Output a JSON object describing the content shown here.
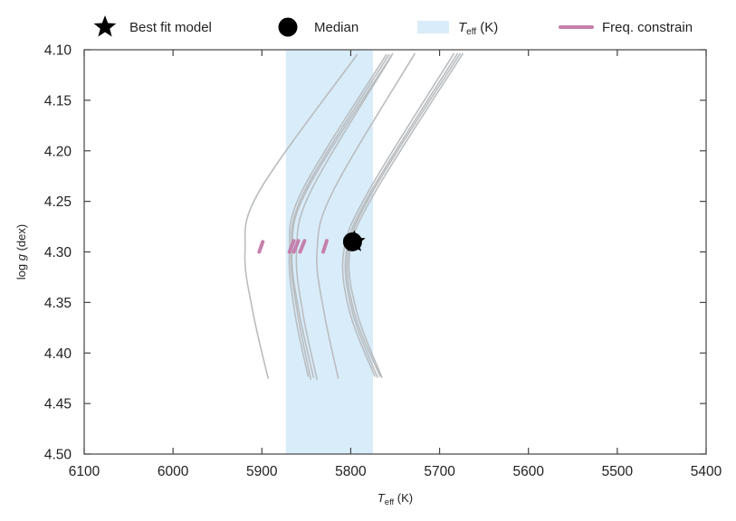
{
  "chart_data": {
    "type": "line",
    "x_axis": {
      "range": [
        6100,
        5400
      ],
      "reversed": true,
      "ticks": [
        6100,
        6000,
        5900,
        5800,
        5700,
        5600,
        5500,
        5400
      ],
      "tick_labels": [
        "6100",
        "6000",
        "5900",
        "5800",
        "5700",
        "5600",
        "5500",
        "5400"
      ],
      "label_main": "T",
      "label_sub": "eff",
      "label_unit": " (K)"
    },
    "y_axis": {
      "range": [
        4.1,
        4.5
      ],
      "reversed": true,
      "ticks": [
        4.1,
        4.15,
        4.2,
        4.25,
        4.3,
        4.35,
        4.4,
        4.45,
        4.5
      ],
      "tick_labels": [
        "4.10",
        "4.15",
        "4.20",
        "4.25",
        "4.30",
        "4.35",
        "4.40",
        "4.45",
        "4.50"
      ],
      "label_pre": "log ",
      "label_italic": "g",
      "label_post": " (dex)"
    },
    "teff_band": {
      "x_min": 5775,
      "x_max": 5873,
      "color": "#d9ecf9"
    },
    "tracks": [
      {
        "x": [
          5793,
          5903,
          5919,
          5910,
          5893
        ],
        "y": [
          4.105,
          4.24,
          4.3,
          4.36,
          4.425
        ]
      },
      {
        "x": [
          5760,
          5855,
          5869,
          5863,
          5848
        ],
        "y": [
          4.105,
          4.24,
          4.3,
          4.36,
          4.423
        ]
      },
      {
        "x": [
          5753,
          5850,
          5866,
          5858,
          5842
        ],
        "y": [
          4.104,
          4.24,
          4.3,
          4.36,
          4.424
        ]
      },
      {
        "x": [
          5757,
          5852,
          5867,
          5860,
          5845
        ],
        "y": [
          4.105,
          4.24,
          4.3,
          4.36,
          4.426
        ]
      },
      {
        "x": [
          5754,
          5845,
          5861,
          5854,
          5838
        ],
        "y": [
          4.106,
          4.24,
          4.3,
          4.36,
          4.426
        ]
      },
      {
        "x": [
          5728,
          5820,
          5838,
          5830,
          5814
        ],
        "y": [
          4.104,
          4.24,
          4.3,
          4.36,
          4.425
        ]
      },
      {
        "x": [
          5677,
          5775,
          5803,
          5796,
          5767
        ],
        "y": [
          4.104,
          4.24,
          4.3,
          4.36,
          4.423
        ]
      },
      {
        "x": [
          5674,
          5772,
          5801,
          5793,
          5765
        ],
        "y": [
          4.104,
          4.24,
          4.3,
          4.36,
          4.424
        ]
      },
      {
        "x": [
          5680,
          5777,
          5805,
          5798,
          5770
        ],
        "y": [
          4.104,
          4.24,
          4.3,
          4.36,
          4.424
        ]
      },
      {
        "x": [
          5684,
          5780,
          5808,
          5801,
          5773
        ],
        "y": [
          4.104,
          4.24,
          4.3,
          4.36,
          4.423
        ]
      }
    ],
    "freq_segments": [
      {
        "x": [
          5899,
          5903
        ],
        "y": [
          4.29,
          4.3
        ]
      },
      {
        "x": [
          5859,
          5864
        ],
        "y": [
          4.289,
          4.3
        ]
      },
      {
        "x": [
          5852,
          5857
        ],
        "y": [
          4.289,
          4.3
        ]
      },
      {
        "x": [
          5864,
          5869
        ],
        "y": [
          4.289,
          4.3
        ]
      },
      {
        "x": [
          5827,
          5831
        ],
        "y": [
          4.289,
          4.3
        ]
      }
    ],
    "best_fit": {
      "x": 5796,
      "y": 4.29
    },
    "median": {
      "x": 5798,
      "y": 4.29
    },
    "legend": [
      {
        "marker": "star",
        "label": "Best fit model"
      },
      {
        "marker": "circle",
        "label": "Median"
      },
      {
        "marker": "band",
        "label_main": "T",
        "label_sub": "eff",
        "label_post": " (K)"
      },
      {
        "marker": "line",
        "label": "Freq. constrain"
      }
    ],
    "legend_placement": "top",
    "grid": false,
    "colors": {
      "track": "#b9bdc0",
      "freq": "#c580ad",
      "band": "#d9ecf9",
      "marker": "#000000",
      "axis": "#444444"
    }
  }
}
